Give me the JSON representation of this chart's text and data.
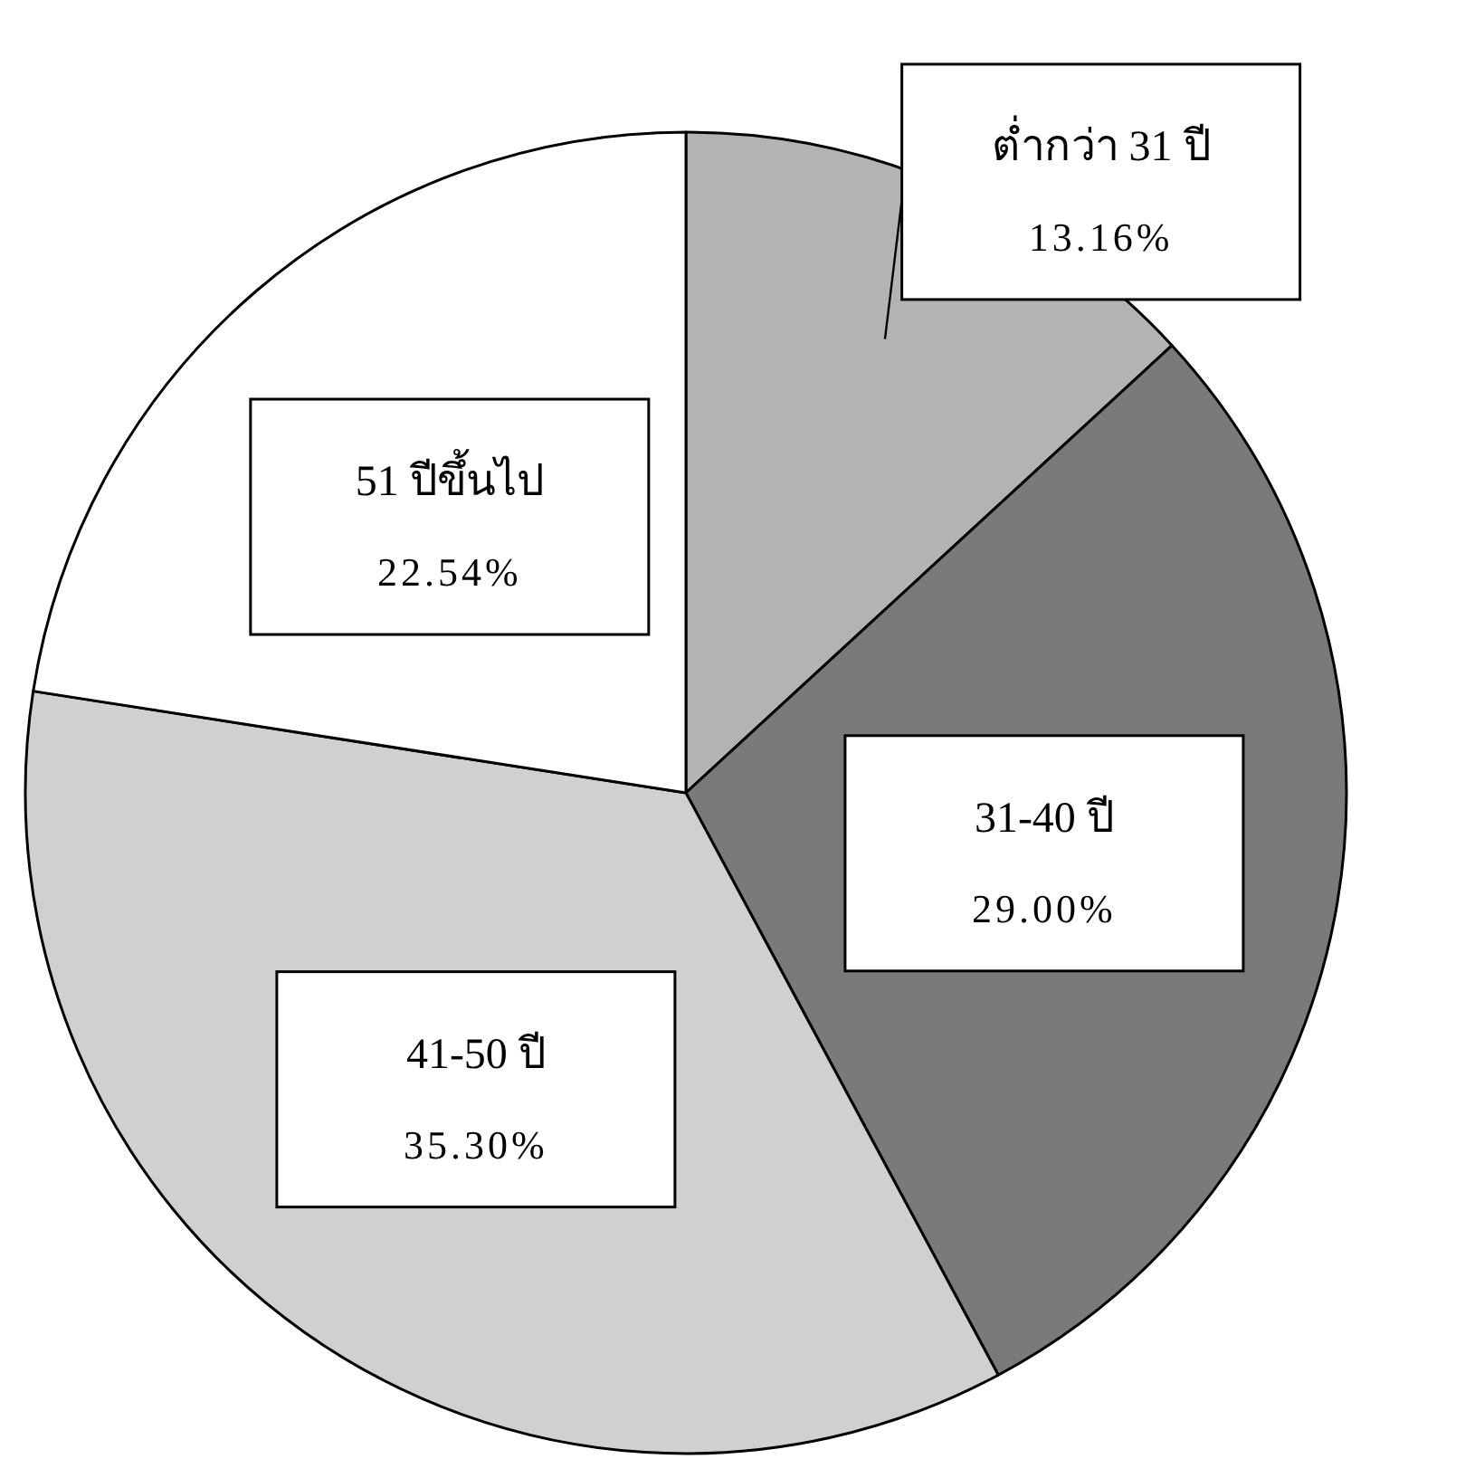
{
  "chart_data": {
    "type": "pie",
    "categories": [
      "ต่ำกว่า 31 ปี",
      "31-40 ปี",
      "41-50 ปี",
      "51 ปีขึ้นไป"
    ],
    "values": [
      13.16,
      29.0,
      35.3,
      22.54
    ],
    "colors": [
      "#b3b3b3",
      "#7a7a7a",
      "#d0d0d0",
      "#ffffff"
    ],
    "value_labels": [
      "13.16%",
      "29.00%",
      "35.30%",
      "22.54%"
    ]
  }
}
